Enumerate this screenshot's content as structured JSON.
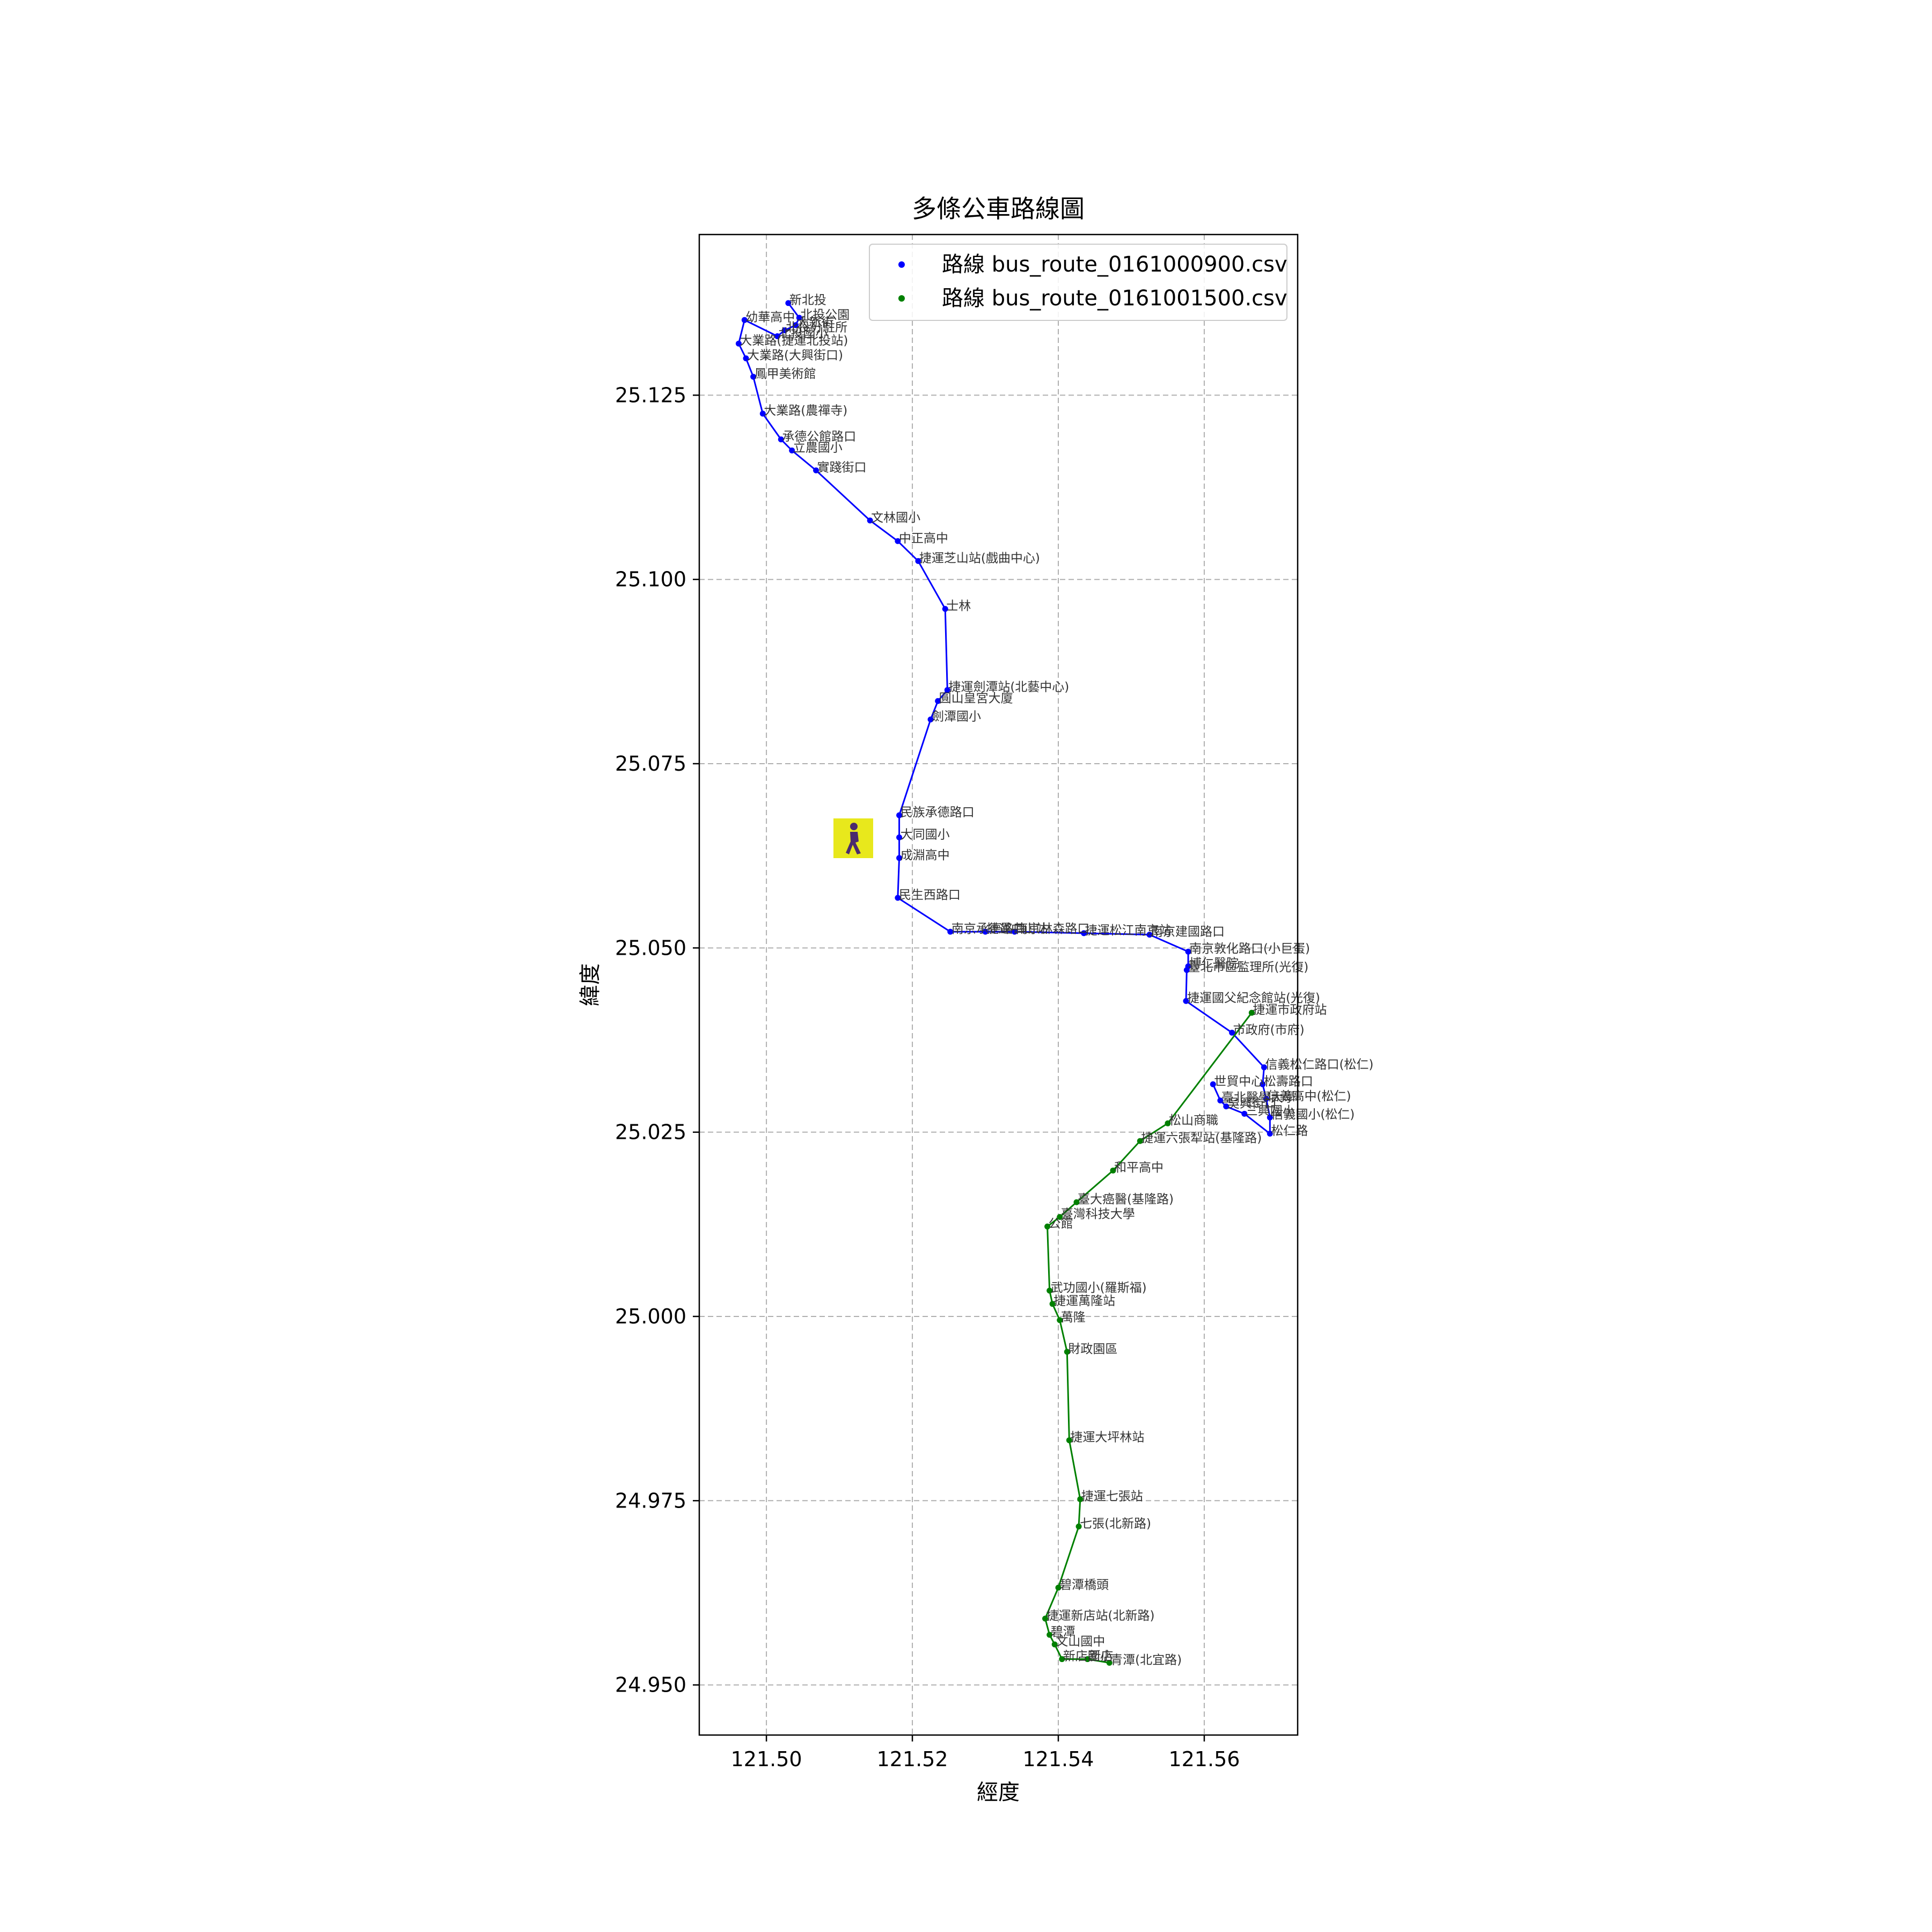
{
  "chart_data": {
    "type": "line",
    "title": "多條公車路線圖",
    "xlabel": "經度",
    "ylabel": "緯度",
    "xlim": [
      121.4908,
      121.5728
    ],
    "ylim": [
      24.9432,
      25.1468
    ],
    "xticks": [
      {
        "value": 121.5,
        "label": "121.50"
      },
      {
        "value": 121.52,
        "label": "121.52"
      },
      {
        "value": 121.54,
        "label": "121.54"
      },
      {
        "value": 121.56,
        "label": "121.56"
      }
    ],
    "yticks": [
      {
        "value": 24.95,
        "label": "24.950"
      },
      {
        "value": 24.975,
        "label": "24.975"
      },
      {
        "value": 25.0,
        "label": "25.000"
      },
      {
        "value": 25.025,
        "label": "25.025"
      },
      {
        "value": 25.05,
        "label": "25.050"
      },
      {
        "value": 25.075,
        "label": "25.075"
      },
      {
        "value": 25.1,
        "label": "25.100"
      },
      {
        "value": 25.125,
        "label": "25.125"
      }
    ],
    "grid": true,
    "legend": {
      "placement": "top-right"
    },
    "series": [
      {
        "name": "路線 bus_route_0161000900.csv",
        "color": "#0000ff",
        "points": [
          {
            "x": 121.503,
            "y": 25.1375,
            "label": "新北投"
          },
          {
            "x": 121.5045,
            "y": 25.1355,
            "label": "北投公園"
          },
          {
            "x": 121.504,
            "y": 25.1345,
            "label": "大新街"
          },
          {
            "x": 121.5025,
            "y": 25.1338,
            "label": "北投分駐所"
          },
          {
            "x": 121.5015,
            "y": 25.133,
            "label": "北投國小"
          },
          {
            "x": 121.497,
            "y": 25.1352,
            "label": "幼華高中"
          },
          {
            "x": 121.4962,
            "y": 25.132,
            "label": "大業路(捷運北投站)"
          },
          {
            "x": 121.4972,
            "y": 25.13,
            "label": "大業路(大興街口)"
          },
          {
            "x": 121.4982,
            "y": 25.1275,
            "label": "鳳甲美術館"
          },
          {
            "x": 121.4995,
            "y": 25.1225,
            "label": "大業路(農禪寺)"
          },
          {
            "x": 121.502,
            "y": 25.119,
            "label": "承德公館路口"
          },
          {
            "x": 121.5035,
            "y": 25.1175,
            "label": "立農國小"
          },
          {
            "x": 121.5068,
            "y": 25.1148,
            "label": "實踐街口"
          },
          {
            "x": 121.5142,
            "y": 25.108,
            "label": "文林國小"
          },
          {
            "x": 121.518,
            "y": 25.1052,
            "label": "中正高中"
          },
          {
            "x": 121.5208,
            "y": 25.1025,
            "label": "捷運芝山站(戲曲中心)"
          },
          {
            "x": 121.5245,
            "y": 25.096,
            "label": "士林"
          },
          {
            "x": 121.5248,
            "y": 25.085,
            "label": "捷運劍潭站(北藝中心)"
          },
          {
            "x": 121.5235,
            "y": 25.0835,
            "label": "圓山皇宮大廈"
          },
          {
            "x": 121.5225,
            "y": 25.081,
            "label": "劍潭國小"
          },
          {
            "x": 121.5182,
            "y": 25.068,
            "label": "民族承德路口"
          },
          {
            "x": 121.5182,
            "y": 25.065,
            "label": "大同國小"
          },
          {
            "x": 121.5182,
            "y": 25.0622,
            "label": "成淵高中"
          },
          {
            "x": 121.518,
            "y": 25.0568,
            "label": "民生西路口"
          },
          {
            "x": 121.5252,
            "y": 25.0522,
            "label": "南京承德路口"
          },
          {
            "x": 121.53,
            "y": 25.0522,
            "label": "捷運中山站"
          },
          {
            "x": 121.534,
            "y": 25.0522,
            "label": "南京林森路口"
          },
          {
            "x": 121.5435,
            "y": 25.052,
            "label": "捷運松江南京站"
          },
          {
            "x": 121.5525,
            "y": 25.0518,
            "label": "南京建國路口"
          },
          {
            "x": 121.5578,
            "y": 25.0495,
            "label": "南京敦化路口(小巨蛋)"
          },
          {
            "x": 121.5578,
            "y": 25.0475,
            "label": "博仁醫院"
          },
          {
            "x": 121.5576,
            "y": 25.047,
            "label": "臺北市區監理所(光復)"
          },
          {
            "x": 121.5575,
            "y": 25.0428,
            "label": "捷運國父紀念館站(光復)"
          },
          {
            "x": 121.5638,
            "y": 25.0385,
            "label": "市政府(市府)"
          },
          {
            "x": 121.5682,
            "y": 25.0338,
            "label": "信義松仁路口(松仁)"
          },
          {
            "x": 121.568,
            "y": 25.0315,
            "label": "松壽路口"
          },
          {
            "x": 121.5685,
            "y": 25.0295,
            "label": "信義高中(松仁)"
          },
          {
            "x": 121.569,
            "y": 25.027,
            "label": "信義國小(松仁)"
          },
          {
            "x": 121.569,
            "y": 25.0248,
            "label": "松仁路"
          },
          {
            "x": 121.5655,
            "y": 25.0275,
            "label": "三興國小"
          },
          {
            "x": 121.563,
            "y": 25.0285,
            "label": "吳興街口"
          },
          {
            "x": 121.5622,
            "y": 25.0293,
            "label": "臺北醫學大學"
          },
          {
            "x": 121.5612,
            "y": 25.0315,
            "label": "世貿中心"
          }
        ]
      },
      {
        "name": "路線 bus_route_0161001500.csv",
        "color": "#008000",
        "points": [
          {
            "x": 121.5665,
            "y": 25.0412,
            "label": "捷運市政府站"
          },
          {
            "x": 121.555,
            "y": 25.0262,
            "label": "松山商職"
          },
          {
            "x": 121.5512,
            "y": 25.0238,
            "label": "捷運六張犁站(基隆路)"
          },
          {
            "x": 121.5475,
            "y": 25.0198,
            "label": "和平高中"
          },
          {
            "x": 121.5425,
            "y": 25.0155,
            "label": "臺大癌醫(基隆路)"
          },
          {
            "x": 121.5402,
            "y": 25.0135,
            "label": "臺灣科技大學"
          },
          {
            "x": 121.5385,
            "y": 25.0122,
            "label": "公館"
          },
          {
            "x": 121.5388,
            "y": 25.0035,
            "label": "武功國小(羅斯福)"
          },
          {
            "x": 121.5392,
            "y": 25.0017,
            "label": "捷運萬隆站"
          },
          {
            "x": 121.5402,
            "y": 24.9995,
            "label": "萬隆"
          },
          {
            "x": 121.5412,
            "y": 24.9952,
            "label": "財政園區"
          },
          {
            "x": 121.5415,
            "y": 24.9832,
            "label": "捷運大坪林站"
          },
          {
            "x": 121.543,
            "y": 24.9752,
            "label": "捷運七張站"
          },
          {
            "x": 121.5428,
            "y": 24.9715,
            "label": "七張(北新路)"
          },
          {
            "x": 121.54,
            "y": 24.9632,
            "label": "碧潭橋頭"
          },
          {
            "x": 121.5382,
            "y": 24.959,
            "label": "捷運新店站(北新路)"
          },
          {
            "x": 121.5388,
            "y": 24.9568,
            "label": "碧潭"
          },
          {
            "x": 121.5395,
            "y": 24.9555,
            "label": "文山國中"
          },
          {
            "x": 121.5405,
            "y": 24.9535,
            "label": "新店國小"
          },
          {
            "x": 121.544,
            "y": 24.9535,
            "label": "新店"
          },
          {
            "x": 121.547,
            "y": 24.953,
            "label": "青潭(北宜路)"
          }
        ]
      }
    ]
  },
  "overlay": {
    "icon": "pedestrian-walking-icon",
    "background": "#e8e81c",
    "figure_color": "#4b2a6e"
  }
}
